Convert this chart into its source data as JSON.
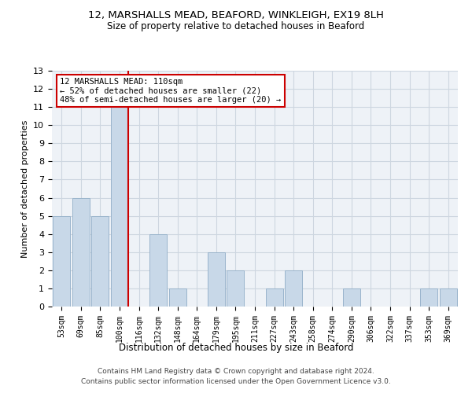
{
  "title1": "12, MARSHALLS MEAD, BEAFORD, WINKLEIGH, EX19 8LH",
  "title2": "Size of property relative to detached houses in Beaford",
  "xlabel": "Distribution of detached houses by size in Beaford",
  "ylabel": "Number of detached properties",
  "categories": [
    "53sqm",
    "69sqm",
    "85sqm",
    "100sqm",
    "116sqm",
    "132sqm",
    "148sqm",
    "164sqm",
    "179sqm",
    "195sqm",
    "211sqm",
    "227sqm",
    "243sqm",
    "258sqm",
    "274sqm",
    "290sqm",
    "306sqm",
    "322sqm",
    "337sqm",
    "353sqm",
    "369sqm"
  ],
  "values": [
    5,
    6,
    5,
    11,
    0,
    4,
    1,
    0,
    3,
    2,
    0,
    1,
    2,
    0,
    0,
    1,
    0,
    0,
    0,
    1,
    1
  ],
  "bar_color": "#c8d8e8",
  "bar_edge_color": "#9ab4cc",
  "highlight_index": 3,
  "highlight_line_color": "#cc0000",
  "annotation_text": "12 MARSHALLS MEAD: 110sqm\n← 52% of detached houses are smaller (22)\n48% of semi-detached houses are larger (20) →",
  "annotation_box_color": "white",
  "annotation_box_edge_color": "#cc0000",
  "ylim": [
    0,
    13
  ],
  "yticks": [
    0,
    1,
    2,
    3,
    4,
    5,
    6,
    7,
    8,
    9,
    10,
    11,
    12,
    13
  ],
  "footer1": "Contains HM Land Registry data © Crown copyright and database right 2024.",
  "footer2": "Contains public sector information licensed under the Open Government Licence v3.0.",
  "bg_color": "#eef2f7",
  "grid_color": "#cdd6e0"
}
